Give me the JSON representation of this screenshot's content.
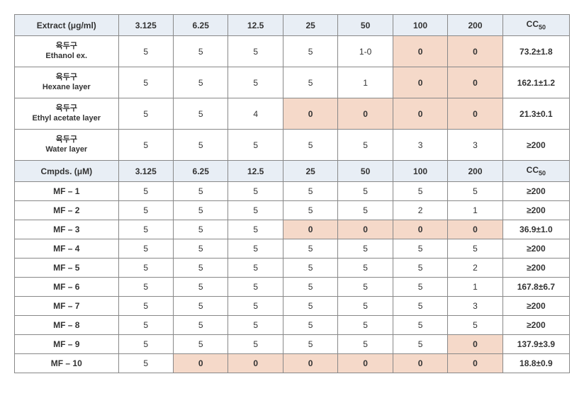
{
  "colors": {
    "header_bg": "#e8eef5",
    "highlight_bg": "#f5d9c9",
    "border": "#888888",
    "text": "#333333",
    "background": "#ffffff"
  },
  "header1": {
    "label": "Extract (μg/ml)",
    "cols": [
      "3.125",
      "6.25",
      "12.5",
      "25",
      "50",
      "100",
      "200"
    ],
    "cc": "CC₅₀"
  },
  "extractRows": [
    {
      "name_kr": "육두구",
      "name_en": "Ethanol ex.",
      "vals": [
        "5",
        "5",
        "5",
        "5",
        "1-0",
        "0",
        "0"
      ],
      "hl": [
        false,
        false,
        false,
        false,
        false,
        true,
        true
      ],
      "cc": "73.2±1.8"
    },
    {
      "name_kr": "육두구",
      "name_en": "Hexane layer",
      "vals": [
        "5",
        "5",
        "5",
        "5",
        "1",
        "0",
        "0"
      ],
      "hl": [
        false,
        false,
        false,
        false,
        false,
        true,
        true
      ],
      "cc": "162.1±1.2"
    },
    {
      "name_kr": "육두구",
      "name_en": "Ethyl acetate layer",
      "vals": [
        "5",
        "5",
        "4",
        "0",
        "0",
        "0",
        "0"
      ],
      "hl": [
        false,
        false,
        false,
        true,
        true,
        true,
        true
      ],
      "cc": "21.3±0.1"
    },
    {
      "name_kr": "육두구",
      "name_en": "Water layer",
      "vals": [
        "5",
        "5",
        "5",
        "5",
        "5",
        "3",
        "3"
      ],
      "hl": [
        false,
        false,
        false,
        false,
        false,
        false,
        false
      ],
      "cc": "≥200"
    }
  ],
  "header2": {
    "label": "Cmpds. (μM)",
    "cols": [
      "3.125",
      "6.25",
      "12.5",
      "25",
      "50",
      "100",
      "200"
    ],
    "cc": "CC₅₀"
  },
  "cmpdRows": [
    {
      "name": "MF – 1",
      "vals": [
        "5",
        "5",
        "5",
        "5",
        "5",
        "5",
        "5"
      ],
      "hl": [
        false,
        false,
        false,
        false,
        false,
        false,
        false
      ],
      "cc": "≥200"
    },
    {
      "name": "MF – 2",
      "vals": [
        "5",
        "5",
        "5",
        "5",
        "5",
        "2",
        "1"
      ],
      "hl": [
        false,
        false,
        false,
        false,
        false,
        false,
        false
      ],
      "cc": "≥200"
    },
    {
      "name": "MF – 3",
      "vals": [
        "5",
        "5",
        "5",
        "0",
        "0",
        "0",
        "0"
      ],
      "hl": [
        false,
        false,
        false,
        true,
        true,
        true,
        true
      ],
      "cc": "36.9±1.0"
    },
    {
      "name": "MF – 4",
      "vals": [
        "5",
        "5",
        "5",
        "5",
        "5",
        "5",
        "5"
      ],
      "hl": [
        false,
        false,
        false,
        false,
        false,
        false,
        false
      ],
      "cc": "≥200"
    },
    {
      "name": "MF – 5",
      "vals": [
        "5",
        "5",
        "5",
        "5",
        "5",
        "5",
        "2"
      ],
      "hl": [
        false,
        false,
        false,
        false,
        false,
        false,
        false
      ],
      "cc": "≥200"
    },
    {
      "name": "MF – 6",
      "vals": [
        "5",
        "5",
        "5",
        "5",
        "5",
        "5",
        "1"
      ],
      "hl": [
        false,
        false,
        false,
        false,
        false,
        false,
        false
      ],
      "cc": "167.8±6.7"
    },
    {
      "name": "MF – 7",
      "vals": [
        "5",
        "5",
        "5",
        "5",
        "5",
        "5",
        "3"
      ],
      "hl": [
        false,
        false,
        false,
        false,
        false,
        false,
        false
      ],
      "cc": "≥200"
    },
    {
      "name": "MF – 8",
      "vals": [
        "5",
        "5",
        "5",
        "5",
        "5",
        "5",
        "5"
      ],
      "hl": [
        false,
        false,
        false,
        false,
        false,
        false,
        false
      ],
      "cc": "≥200"
    },
    {
      "name": "MF – 9",
      "vals": [
        "5",
        "5",
        "5",
        "5",
        "5",
        "5",
        "0"
      ],
      "hl": [
        false,
        false,
        false,
        false,
        false,
        false,
        true
      ],
      "cc": "137.9±3.9"
    },
    {
      "name": "MF – 10",
      "vals": [
        "5",
        "0",
        "0",
        "0",
        "0",
        "0",
        "0"
      ],
      "hl": [
        false,
        true,
        true,
        true,
        true,
        true,
        true
      ],
      "cc": "18.8±0.9"
    }
  ]
}
